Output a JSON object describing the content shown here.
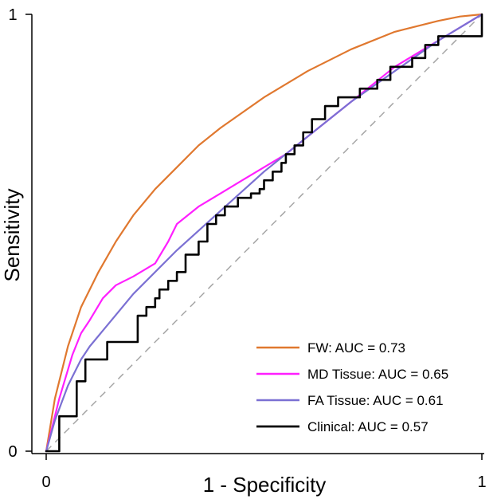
{
  "chart_data": {
    "type": "line",
    "title": "",
    "xlabel": "1 - Specificity",
    "ylabel": "Sensitivity",
    "xlim": [
      0,
      1
    ],
    "ylim": [
      0,
      1
    ],
    "xticks": [
      0,
      1
    ],
    "yticks": [
      0,
      1
    ],
    "grid": false,
    "legend_position": "bottom-right",
    "reference_line": {
      "x": [
        0,
        1
      ],
      "y": [
        0,
        1
      ],
      "style": "dashed",
      "color": "#a6a6a6"
    },
    "series": [
      {
        "name": "FW: AUC = 0.73",
        "color": "#e0782f",
        "x": [
          0,
          0.02,
          0.05,
          0.08,
          0.12,
          0.16,
          0.2,
          0.25,
          0.3,
          0.35,
          0.4,
          0.5,
          0.6,
          0.7,
          0.8,
          0.9,
          0.95,
          1
        ],
        "y": [
          0,
          0.12,
          0.24,
          0.33,
          0.41,
          0.48,
          0.54,
          0.6,
          0.65,
          0.7,
          0.74,
          0.81,
          0.87,
          0.92,
          0.96,
          0.985,
          0.995,
          1
        ]
      },
      {
        "name": "MD Tissue: AUC = 0.65",
        "color": "#ff1fff",
        "x": [
          0,
          0.03,
          0.06,
          0.08,
          0.1,
          0.13,
          0.16,
          0.2,
          0.25,
          0.28,
          0.3,
          0.35,
          0.4,
          0.45,
          0.5,
          0.55,
          0.6,
          0.65,
          0.7,
          0.75,
          0.8,
          0.85,
          0.9,
          0.95,
          1
        ],
        "y": [
          0,
          0.12,
          0.22,
          0.27,
          0.3,
          0.35,
          0.38,
          0.4,
          0.43,
          0.48,
          0.52,
          0.56,
          0.59,
          0.62,
          0.65,
          0.68,
          0.72,
          0.76,
          0.8,
          0.84,
          0.88,
          0.91,
          0.94,
          0.97,
          1
        ]
      },
      {
        "name": "FA Tissue: AUC = 0.61",
        "color": "#7b70d3",
        "x": [
          0,
          0.02,
          0.05,
          0.08,
          0.1,
          0.15,
          0.2,
          0.3,
          0.4,
          0.5,
          0.6,
          0.7,
          0.8,
          0.9,
          1
        ],
        "y": [
          0,
          0.07,
          0.15,
          0.21,
          0.24,
          0.3,
          0.36,
          0.46,
          0.55,
          0.64,
          0.72,
          0.8,
          0.87,
          0.94,
          1
        ]
      },
      {
        "name": "Clinical: AUC = 0.57",
        "color": "#000000",
        "x": [
          0,
          0.03,
          0.03,
          0.07,
          0.07,
          0.09,
          0.09,
          0.14,
          0.14,
          0.21,
          0.21,
          0.23,
          0.23,
          0.25,
          0.25,
          0.26,
          0.26,
          0.28,
          0.28,
          0.3,
          0.3,
          0.32,
          0.32,
          0.35,
          0.35,
          0.37,
          0.37,
          0.39,
          0.39,
          0.41,
          0.41,
          0.44,
          0.44,
          0.47,
          0.47,
          0.49,
          0.49,
          0.5,
          0.5,
          0.52,
          0.52,
          0.54,
          0.54,
          0.55,
          0.55,
          0.57,
          0.57,
          0.59,
          0.59,
          0.61,
          0.61,
          0.64,
          0.64,
          0.67,
          0.67,
          0.72,
          0.72,
          0.76,
          0.76,
          0.79,
          0.79,
          0.84,
          0.84,
          0.87,
          0.87,
          0.9,
          0.9,
          0.95,
          0.95,
          1,
          1
        ],
        "y": [
          0,
          0,
          0.08,
          0.08,
          0.16,
          0.16,
          0.21,
          0.21,
          0.25,
          0.25,
          0.31,
          0.31,
          0.33,
          0.33,
          0.35,
          0.35,
          0.37,
          0.37,
          0.39,
          0.39,
          0.41,
          0.41,
          0.45,
          0.45,
          0.48,
          0.48,
          0.52,
          0.52,
          0.54,
          0.54,
          0.56,
          0.56,
          0.58,
          0.58,
          0.59,
          0.59,
          0.6,
          0.6,
          0.62,
          0.62,
          0.64,
          0.64,
          0.66,
          0.66,
          0.68,
          0.68,
          0.7,
          0.7,
          0.73,
          0.73,
          0.76,
          0.76,
          0.79,
          0.79,
          0.81,
          0.81,
          0.83,
          0.83,
          0.85,
          0.85,
          0.88,
          0.88,
          0.9,
          0.9,
          0.93,
          0.93,
          0.95,
          0.95,
          0.95,
          0.95,
          1
        ]
      }
    ]
  }
}
